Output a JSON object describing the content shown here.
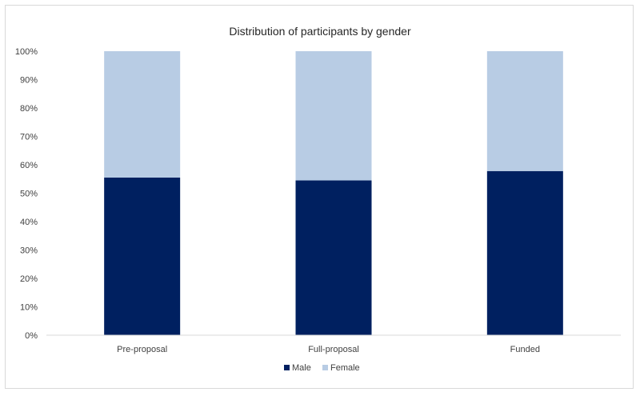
{
  "chart_data": {
    "type": "bar",
    "stacked": true,
    "title": "Distribution of participants by gender",
    "categories": [
      "Pre-proposal",
      "Full-proposal",
      "Funded"
    ],
    "series": [
      {
        "name": "Male",
        "values": [
          55.5,
          54.5,
          57.8
        ],
        "color": "#002060"
      },
      {
        "name": "Female",
        "values": [
          44.5,
          45.5,
          42.2
        ],
        "color": "#b8cce4"
      }
    ],
    "ylim": [
      0,
      100
    ],
    "yticks": [
      "0%",
      "10%",
      "20%",
      "30%",
      "40%",
      "50%",
      "60%",
      "70%",
      "80%",
      "90%",
      "100%"
    ],
    "grid": false,
    "legend_position": "bottom"
  }
}
